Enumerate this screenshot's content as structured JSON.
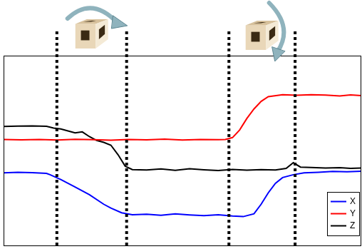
{
  "chart_data": {
    "type": "line",
    "xlim": [
      0,
      100
    ],
    "ylim": [
      0,
      100
    ],
    "tick_labels": false,
    "grid": false,
    "legend": "lower right",
    "vlines": [
      14.9,
      34.4,
      63.0,
      81.5
    ],
    "series": [
      {
        "name": "X",
        "color": "#0000ff",
        "line_style": "solid",
        "x": [
          0,
          4,
          8,
          12,
          13,
          16,
          20,
          24,
          28,
          30,
          33,
          36,
          40,
          44,
          48,
          52,
          56,
          60,
          64,
          67,
          70,
          72,
          74,
          76,
          78,
          81,
          84,
          88,
          92,
          96,
          100
        ],
        "values": [
          38.5,
          38.8,
          38.6,
          38.2,
          37.5,
          35,
          31,
          27,
          22,
          20,
          17.5,
          16.5,
          16.8,
          16.2,
          16.9,
          16.4,
          16.0,
          16.5,
          15.8,
          15.5,
          17,
          22,
          28,
          33,
          36,
          37.5,
          38.5,
          38.8,
          39.2,
          39.0,
          39.3
        ]
      },
      {
        "name": "Y",
        "color": "#ff0000",
        "line_style": "solid",
        "x": [
          0,
          5,
          10,
          15,
          20,
          25,
          30,
          35,
          40,
          45,
          50,
          55,
          60,
          62,
          64,
          66,
          68,
          70,
          72,
          74,
          78,
          82,
          86,
          90,
          94,
          97,
          100
        ],
        "values": [
          56,
          55.8,
          56,
          55.7,
          56.1,
          55.9,
          55.6,
          56,
          55.8,
          56.2,
          55.7,
          56,
          55.9,
          56,
          57,
          61,
          67,
          72,
          76,
          78.5,
          79.5,
          79.2,
          79.5,
          79.3,
          78.8,
          79.4,
          79
        ]
      },
      {
        "name": "Z",
        "color": "#000000",
        "line_style": "solid",
        "x": [
          0,
          4,
          8,
          12,
          14,
          16,
          18,
          20,
          22,
          24,
          26,
          28,
          30,
          32,
          34,
          36,
          40,
          44,
          48,
          52,
          56,
          60,
          64,
          68,
          72,
          76,
          79,
          81,
          83,
          86,
          90,
          94,
          97,
          100
        ],
        "values": [
          62.8,
          63,
          63.1,
          62.9,
          62,
          61.5,
          60.5,
          59.5,
          60,
          57.5,
          55.5,
          54.5,
          53,
          48,
          42,
          40.2,
          40,
          40.5,
          39.8,
          40.6,
          40.1,
          39.7,
          40.3,
          39.9,
          40.2,
          40,
          40.8,
          43.8,
          41.5,
          41.3,
          41,
          41.2,
          40.8,
          41
        ]
      }
    ]
  }
}
